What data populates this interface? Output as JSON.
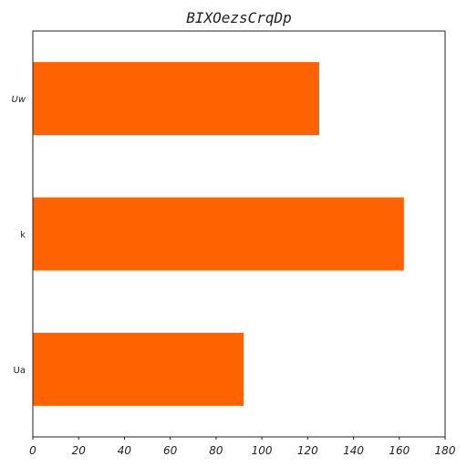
{
  "chart_data": {
    "type": "bar",
    "orientation": "horizontal",
    "title": "BIXOezsCrqDp",
    "xlabel": "",
    "ylabel": "",
    "categories": [
      "Uw",
      "k",
      "Ua"
    ],
    "values": [
      125,
      162,
      92
    ],
    "xlim": [
      0,
      180
    ],
    "xticks": [
      0,
      20,
      40,
      60,
      80,
      100,
      120,
      140,
      160,
      180
    ],
    "grid": false,
    "bar_color": "#ff6200"
  }
}
